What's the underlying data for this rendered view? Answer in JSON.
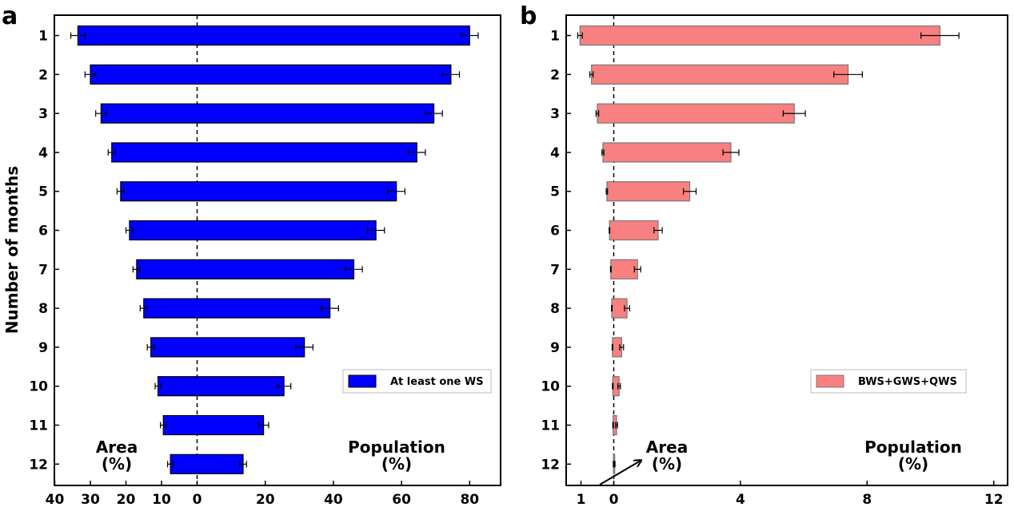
{
  "chart_data": [
    {
      "type": "bar",
      "panel_label": "a",
      "orientation": "horizontal-diverging",
      "categories": [
        "1",
        "2",
        "3",
        "4",
        "5",
        "6",
        "7",
        "8",
        "9",
        "10",
        "11",
        "12"
      ],
      "ylabel": "Number of months",
      "x_tick_labels": [
        "40",
        "30",
        "20",
        "10",
        "0",
        "20",
        "40",
        "60",
        "80"
      ],
      "left_side": {
        "label_line1": "Area",
        "label_line2": "(%)",
        "xlim": [
          0,
          42
        ]
      },
      "right_side": {
        "label_line1": "Population",
        "label_line2": "(%)",
        "xlim": [
          0,
          88
        ]
      },
      "color": "#0000FF",
      "legend": {
        "label": "At least one WS",
        "placement": "right-middle"
      },
      "series": [
        {
          "side": "area",
          "values": [
            33.5,
            30,
            27,
            24,
            21.5,
            19,
            17,
            15,
            13,
            11,
            9.5,
            7.5
          ],
          "errors": [
            2,
            1.5,
            1.5,
            1,
            1,
            1,
            1,
            1,
            1,
            0.8,
            0.8,
            0.8
          ]
        },
        {
          "side": "population",
          "values": [
            80,
            74.5,
            69.5,
            64.5,
            58.5,
            52.5,
            46,
            39,
            31.5,
            25.5,
            19.5,
            13.5
          ],
          "errors": [
            2.5,
            2.5,
            2.5,
            2.5,
            2.5,
            2.5,
            2.5,
            2.5,
            2.5,
            2,
            1.5,
            1
          ]
        }
      ]
    },
    {
      "type": "bar",
      "panel_label": "b",
      "orientation": "horizontal-diverging",
      "categories": [
        "1",
        "2",
        "3",
        "4",
        "5",
        "6",
        "7",
        "8",
        "9",
        "10",
        "11",
        "12"
      ],
      "x_tick_labels": [
        "1",
        "0",
        "4",
        "8",
        "12"
      ],
      "left_side": {
        "label_line1": "Area",
        "label_line2": "(%)",
        "xlim": [
          0,
          1.4
        ]
      },
      "right_side": {
        "label_line1": "Population",
        "label_line2": "(%)",
        "xlim": [
          0,
          12
        ]
      },
      "color": "#F88080",
      "legend": {
        "label": "BWS+GWS+QWS",
        "placement": "right-middle"
      },
      "series": [
        {
          "side": "area",
          "values": [
            1.03,
            0.68,
            0.5,
            0.33,
            0.21,
            0.13,
            0.09,
            0.06,
            0.04,
            0.03,
            0.02,
            0.01
          ],
          "errors": [
            0.07,
            0.05,
            0.04,
            0.03,
            0.02,
            0.01,
            0.01,
            0.01,
            0.01,
            0.01,
            0.01,
            0.005
          ]
        },
        {
          "side": "population",
          "values": [
            10.3,
            7.4,
            5.7,
            3.7,
            2.4,
            1.4,
            0.75,
            0.42,
            0.25,
            0.17,
            0.09,
            0.03
          ],
          "errors": [
            0.6,
            0.45,
            0.35,
            0.25,
            0.2,
            0.13,
            0.1,
            0.08,
            0.06,
            0.04,
            0.03,
            0.01
          ]
        }
      ]
    }
  ]
}
